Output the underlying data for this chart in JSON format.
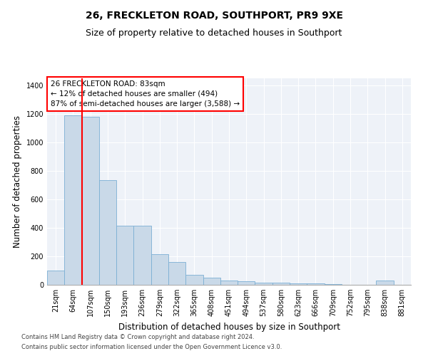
{
  "title1": "26, FRECKLETON ROAD, SOUTHPORT, PR9 9XE",
  "title2": "Size of property relative to detached houses in Southport",
  "xlabel": "Distribution of detached houses by size in Southport",
  "ylabel": "Number of detached properties",
  "categories": [
    "21sqm",
    "64sqm",
    "107sqm",
    "150sqm",
    "193sqm",
    "236sqm",
    "279sqm",
    "322sqm",
    "365sqm",
    "408sqm",
    "451sqm",
    "494sqm",
    "537sqm",
    "580sqm",
    "623sqm",
    "666sqm",
    "709sqm",
    "752sqm",
    "795sqm",
    "838sqm",
    "881sqm"
  ],
  "values": [
    100,
    1190,
    1180,
    735,
    415,
    415,
    215,
    160,
    70,
    50,
    30,
    25,
    15,
    15,
    10,
    10,
    5,
    0,
    0,
    30,
    0
  ],
  "bar_color": "#c9d9e8",
  "bar_edge_color": "#7bafd4",
  "annotation_text_line1": "26 FRECKLETON ROAD: 83sqm",
  "annotation_text_line2": "← 12% of detached houses are smaller (494)",
  "annotation_text_line3": "87% of semi-detached houses are larger (3,588) →",
  "annotation_box_facecolor": "white",
  "annotation_box_edgecolor": "red",
  "vline_color": "red",
  "vline_x": 1.5,
  "ylim": [
    0,
    1450
  ],
  "yticks": [
    0,
    200,
    400,
    600,
    800,
    1000,
    1200,
    1400
  ],
  "footer1": "Contains HM Land Registry data © Crown copyright and database right 2024.",
  "footer2": "Contains public sector information licensed under the Open Government Licence v3.0.",
  "title_fontsize": 10,
  "subtitle_fontsize": 9,
  "tick_fontsize": 7,
  "label_fontsize": 8.5,
  "annotation_fontsize": 7.5,
  "footer_fontsize": 6,
  "grid_color": "white",
  "bg_color": "#eef2f8"
}
